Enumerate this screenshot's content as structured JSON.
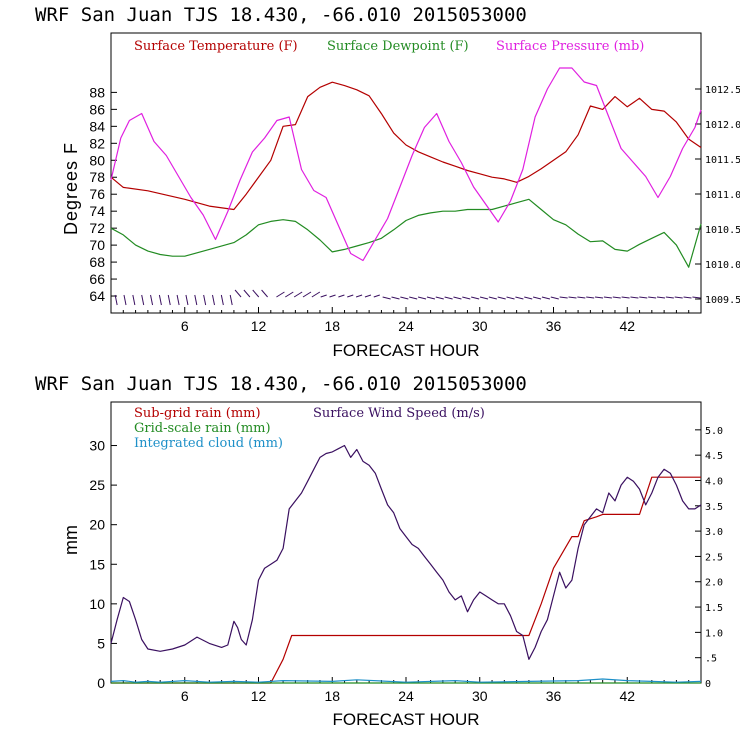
{
  "chart_data": [
    {
      "type": "line",
      "title": "WRF   San Juan TJS  18.430, -66.010  2015053000",
      "xlabel": "FORECAST HOUR",
      "ylabel": "Degrees F",
      "xlim": [
        0,
        48
      ],
      "ylim": [
        62,
        95
      ],
      "y2lim": [
        1009.3,
        1013.3
      ],
      "x_ticks": [
        "6",
        "12",
        "18",
        "24",
        "30",
        "36",
        "42"
      ],
      "y_ticks": [
        "64",
        "66",
        "68",
        "70",
        "72",
        "74",
        "76",
        "78",
        "80",
        "82",
        "84",
        "86",
        "88"
      ],
      "y2_ticks": [
        "1009.5",
        "1010.0",
        "1010.5",
        "1011.0",
        "1011.5",
        "1012.0",
        "1012.5"
      ],
      "legend": [
        "Surface Temperature (F)",
        "Surface Dewpoint (F)",
        "Surface Pressure (mb)"
      ],
      "series": [
        {
          "name": "Surface Temperature (F)",
          "color": "#b40000",
          "axis": "left",
          "x": [
            0,
            1,
            3,
            6,
            8,
            10,
            11,
            13,
            14,
            15,
            16,
            17,
            18,
            19,
            20,
            21,
            22,
            23,
            24,
            25,
            26,
            27,
            28,
            29,
            30,
            31,
            32,
            33,
            34,
            35,
            36,
            37,
            38,
            39,
            40,
            41,
            42,
            43,
            44,
            45,
            46,
            47,
            48
          ],
          "y": [
            78,
            76.8,
            76.4,
            75.4,
            74.6,
            74.2,
            76,
            80,
            84,
            84.2,
            87.5,
            88.6,
            89.2,
            88.8,
            88.3,
            87.6,
            85.5,
            83.2,
            81.8,
            81,
            80.4,
            79.8,
            79.3,
            78.8,
            78.4,
            78,
            77.8,
            77.4,
            78.1,
            79,
            80,
            81,
            83,
            86.4,
            86,
            87.5,
            86.3,
            87.3,
            86,
            85.8,
            84.5,
            82.5,
            81.5
          ]
        },
        {
          "name": "Surface Dewpoint (F)",
          "color": "#228b22",
          "axis": "left",
          "x": [
            0,
            1,
            2,
            3,
            4,
            5,
            6,
            8,
            10,
            11,
            12,
            13,
            14,
            15,
            16,
            17,
            18,
            19,
            20,
            21,
            22,
            23,
            24,
            25,
            26,
            27,
            28,
            29,
            30,
            31,
            32,
            33,
            34,
            35,
            36,
            37,
            38,
            39,
            40,
            41,
            42,
            43,
            44,
            45,
            46,
            47,
            48
          ],
          "y": [
            72,
            71.2,
            70,
            69.3,
            68.9,
            68.7,
            68.7,
            69.5,
            70.3,
            71.2,
            72.4,
            72.8,
            73,
            72.8,
            71.8,
            70.6,
            69.2,
            69.5,
            69.9,
            70.3,
            70.8,
            71.8,
            72.9,
            73.5,
            73.8,
            74,
            74,
            74.2,
            74.2,
            74.2,
            74.6,
            75,
            75.4,
            74.2,
            73,
            72.4,
            71.3,
            70.4,
            70.5,
            69.5,
            69.3,
            70.1,
            70.8,
            71.5,
            70,
            67.4,
            72.5
          ]
        },
        {
          "name": "Surface Pressure (mb)",
          "color": "#e020e0",
          "axis": "right",
          "x": [
            0,
            0.8,
            1.5,
            2.5,
            3.5,
            4.5,
            5.5,
            6.5,
            7.5,
            8.5,
            9.5,
            10.5,
            11.5,
            12.5,
            13.5,
            14.5,
            15.5,
            16.5,
            17.5,
            18.5,
            19.5,
            20.5,
            21.5,
            22.5,
            23.5,
            24.5,
            25.5,
            26.5,
            27.5,
            28.5,
            29.5,
            30.5,
            31.5,
            32.5,
            33.5,
            34.5,
            35.5,
            36.5,
            37.5,
            38.5,
            39.5,
            40.5,
            41.5,
            42.5,
            43.5,
            44.5,
            45.5,
            46.5,
            47.5,
            48
          ],
          "y": [
            1011.2,
            1011.8,
            1012.05,
            1012.15,
            1011.75,
            1011.55,
            1011.25,
            1010.95,
            1010.7,
            1010.35,
            1010.75,
            1011.2,
            1011.6,
            1011.8,
            1012.05,
            1012.1,
            1011.35,
            1011.05,
            1010.95,
            1010.55,
            1010.15,
            1010.05,
            1010.35,
            1010.65,
            1011.1,
            1011.55,
            1011.95,
            1012.15,
            1011.75,
            1011.45,
            1011.1,
            1010.85,
            1010.6,
            1010.9,
            1011.35,
            1012.1,
            1012.5,
            1012.8,
            1012.8,
            1012.6,
            1012.55,
            1012.1,
            1011.65,
            1011.45,
            1011.25,
            1010.95,
            1011.25,
            1011.65,
            1011.95,
            1012.2
          ]
        }
      ],
      "wind_barbs": "row of wind barbs along the bottom of the plot"
    },
    {
      "type": "line",
      "title": "WRF   San Juan TJS  18.430, -66.010  2015053000",
      "xlabel": "FORECAST HOUR",
      "ylabel": "mm",
      "xlim": [
        0,
        48
      ],
      "ylim": [
        0,
        35.5
      ],
      "y2lim": [
        0,
        5.55
      ],
      "x_ticks": [
        "6",
        "12",
        "18",
        "24",
        "30",
        "36",
        "42"
      ],
      "y_ticks": [
        "0",
        "5",
        "10",
        "15",
        "20",
        "25",
        "30"
      ],
      "y2_ticks": [
        "0",
        ".5",
        "1.0",
        "1.5",
        "2.0",
        "2.5",
        "3.0",
        "3.5",
        "4.0",
        "4.5",
        "5.0"
      ],
      "legend": [
        "Sub-grid rain (mm)",
        "Grid-scale rain (mm)",
        "Integrated cloud (mm)",
        "Surface Wind Speed (m/s)"
      ],
      "series": [
        {
          "name": "Sub-grid rain (mm)",
          "color": "#b40000",
          "axis": "left",
          "x": [
            0,
            13,
            14,
            14.7,
            15,
            20,
            30,
            34,
            35,
            36,
            37.5,
            38,
            38.5,
            39.5,
            40,
            40.5,
            42,
            43,
            44,
            48
          ],
          "y": [
            0,
            0,
            3,
            6,
            6,
            6,
            6,
            6,
            10,
            14.5,
            18.5,
            18.5,
            20.5,
            21,
            21.3,
            21.3,
            21.3,
            21.3,
            26,
            26
          ]
        },
        {
          "name": "Grid-scale rain (mm)",
          "color": "#228b22",
          "axis": "left",
          "x": [
            0,
            48
          ],
          "y": [
            0,
            0
          ]
        },
        {
          "name": "Integrated cloud (mm)",
          "color": "#1e90c8",
          "axis": "left",
          "x": [
            0,
            1,
            2,
            3,
            4,
            6,
            8,
            10,
            12,
            14,
            18,
            20,
            24,
            28,
            30,
            34,
            38,
            40,
            42,
            44,
            46,
            48
          ],
          "y": [
            0.2,
            0.3,
            0.1,
            0.2,
            0.1,
            0.3,
            0.1,
            0.2,
            0.1,
            0.3,
            0.2,
            0.4,
            0.1,
            0.3,
            0.1,
            0.2,
            0.3,
            0.5,
            0.3,
            0.2,
            0.1,
            0.2
          ]
        },
        {
          "name": "Surface Wind Speed (m/s)",
          "color": "#3a1060",
          "axis": "left",
          "x": [
            0,
            0.5,
            1,
            1.5,
            2,
            2.5,
            3,
            4,
            5,
            6,
            7,
            8,
            9,
            9.5,
            10,
            10.3,
            10.6,
            11,
            11.5,
            12,
            12.5,
            13,
            13.5,
            14,
            14.5,
            15,
            15.5,
            16,
            16.5,
            17,
            17.5,
            18,
            18.5,
            19,
            19.5,
            20,
            20.5,
            21,
            21.5,
            22,
            22.5,
            23,
            23.5,
            24,
            24.5,
            25,
            25.5,
            26,
            26.5,
            27,
            27.5,
            28,
            28.5,
            29,
            29.5,
            30,
            30.5,
            31,
            31.5,
            32,
            32.5,
            33,
            33.5,
            34,
            34.5,
            35,
            35.5,
            36,
            36.5,
            37,
            37.5,
            38,
            38.5,
            39,
            39.5,
            40,
            40.5,
            41,
            41.5,
            42,
            42.5,
            43,
            43.5,
            44,
            44.5,
            45,
            45.5,
            46,
            46.5,
            47,
            47.5,
            48
          ],
          "y": [
            5,
            8,
            10.8,
            10.3,
            8,
            5.5,
            4.3,
            4,
            4.3,
            4.8,
            5.8,
            5,
            4.5,
            4.8,
            7.8,
            7,
            5.5,
            4.8,
            8,
            13,
            14.5,
            15,
            15.5,
            17,
            22,
            23,
            24,
            25.5,
            27,
            28.5,
            29,
            29.2,
            29.6,
            30,
            28.5,
            29.5,
            28,
            27.5,
            26.5,
            24.5,
            22.5,
            21.5,
            19.5,
            18.5,
            17.5,
            17,
            16,
            15,
            14,
            13,
            11.5,
            10.5,
            11,
            9,
            10.5,
            11.5,
            11,
            10.5,
            10,
            10,
            8.5,
            6.5,
            6,
            3,
            4.5,
            6.5,
            8,
            11,
            14,
            12,
            13,
            17,
            20,
            21,
            22,
            21.5,
            24,
            23,
            25,
            26,
            25.5,
            24.5,
            22.5,
            24,
            26,
            27,
            26.5,
            25,
            23,
            22,
            22,
            22.5
          ]
        }
      ]
    }
  ]
}
